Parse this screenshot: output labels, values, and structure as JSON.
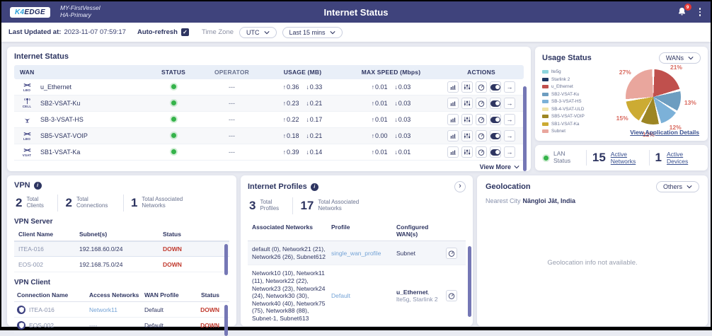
{
  "header": {
    "logo_k4": "K4",
    "logo_edge": "EDGE",
    "vessel_name": "MY-FirstVessel",
    "vessel_mode": "HA-Primary",
    "title": "Internet Status",
    "notification_count": "9"
  },
  "toolbar": {
    "last_updated_label": "Last Updated at:",
    "last_updated_value": "2023-11-07 07:59:17",
    "auto_refresh_label": "Auto-refresh",
    "checkbox_glyph": "✓",
    "time_zone_label": "Time Zone",
    "time_zone_value": "UTC",
    "range_value": "Last 15 mins"
  },
  "icons": {
    "up": "↑",
    "down": "↓",
    "right_arrow": "→",
    "chevron_right": "›",
    "info": "i"
  },
  "internet_status": {
    "title": "Internet Status",
    "columns": [
      "WAN",
      "STATUS",
      "OPERATOR",
      "USAGE (MB)",
      "MAX SPEED (Mbps)",
      "ACTIONS"
    ],
    "view_more": "View More",
    "rows": [
      {
        "name": "u_Ethernet",
        "badge": "LBO",
        "operator": "---",
        "usage_up": "0.36",
        "usage_down": "0.33",
        "speed_up": "0.01",
        "speed_down": "0.03"
      },
      {
        "name": "SB2-VSAT-Ku",
        "badge": "CELL",
        "operator": "---",
        "usage_up": "0.23",
        "usage_down": "0.21",
        "speed_up": "0.01",
        "speed_down": "0.03"
      },
      {
        "name": "SB-3-VSAT-HS",
        "badge": "",
        "operator": "---",
        "usage_up": "0.22",
        "usage_down": "0.17",
        "speed_up": "0.01",
        "speed_down": "0.03"
      },
      {
        "name": "SB5-VSAT-VOIP",
        "badge": "LBO",
        "operator": "---",
        "usage_up": "0.18",
        "usage_down": "0.21",
        "speed_up": "0.00",
        "speed_down": "0.03"
      },
      {
        "name": "SB1-VSAT-Ka",
        "badge": "VSAT",
        "operator": "---",
        "usage_up": "0.39",
        "usage_down": "0.14",
        "speed_up": "0.01",
        "speed_down": "0.01"
      }
    ]
  },
  "usage_status": {
    "title": "Usage Status",
    "filter_value": "WANs",
    "details_link": "View Application Details"
  },
  "chart_data": {
    "type": "pie",
    "title": "Usage Status",
    "legend_position": "left",
    "slices": [
      {
        "label": "u_Ethernet",
        "pct": 21,
        "color": "#c0504d"
      },
      {
        "label": "SB2-VSAT-Ku",
        "pct": 13,
        "color": "#6d9dc0"
      },
      {
        "label": "SB-3-VSAT-HS",
        "pct": 12,
        "color": "#7cb1d8"
      },
      {
        "label": "SB5-VSAT-VOIP",
        "pct": 12,
        "color": "#9d8624"
      },
      {
        "label": "SB1-VSAT-Ka",
        "pct": 15,
        "color": "#ccab33"
      },
      {
        "label": "Subnet",
        "pct": 27,
        "color": "#e9a69d"
      }
    ],
    "legend": [
      {
        "label": "lte5g",
        "color": "#8ed5dd"
      },
      {
        "label": "Starlink 2",
        "color": "#1f3864"
      },
      {
        "label": "u_Ethernet",
        "color": "#c0504d"
      },
      {
        "label": "SB2-VSAT-Ku",
        "color": "#6d9dc0"
      },
      {
        "label": "SB-3-VSAT-HS",
        "color": "#7cb1d8"
      },
      {
        "label": "SB-4-VSAT-ULD",
        "color": "#f0e3a6"
      },
      {
        "label": "SB5-VSAT-VOIP",
        "color": "#9d8624"
      },
      {
        "label": "SB1-VSAT-Ka",
        "color": "#ccab33"
      },
      {
        "label": "Subnet",
        "color": "#e9a69d"
      }
    ]
  },
  "lan": {
    "label_line1": "LAN",
    "label_line2": "Status",
    "networks_value": "15",
    "networks_label": "Active Networks",
    "devices_value": "1",
    "devices_label": "Active Devices"
  },
  "vpn": {
    "title": "VPN",
    "stats": [
      {
        "value": "2",
        "label": "Total Clients"
      },
      {
        "value": "2",
        "label": "Total Connections"
      },
      {
        "value": "1",
        "label": "Total Associated Networks"
      }
    ],
    "server": {
      "title": "VPN Server",
      "columns": [
        "Client Name",
        "Subnet(s)",
        "Status"
      ],
      "rows": [
        {
          "name": "ITEA-016",
          "subnet": "192.168.60.0/24",
          "status": "DOWN"
        },
        {
          "name": "EOS-002",
          "subnet": "192.168.75.0/24",
          "status": "DOWN"
        }
      ]
    },
    "client": {
      "title": "VPN Client",
      "columns": [
        "Connection Name",
        "Access Networks",
        "WAN Profile",
        "Status"
      ],
      "rows": [
        {
          "name": "ITEA-016",
          "access": "Network11",
          "wan_profile": "Default",
          "status": "DOWN"
        },
        {
          "name": "EOS-002",
          "access": "----",
          "wan_profile": "Default",
          "status": "DOWN"
        }
      ]
    }
  },
  "profiles": {
    "title": "Internet Profiles",
    "stats": [
      {
        "value": "3",
        "label": "Total Profiles"
      },
      {
        "value": "17",
        "label": "Total Associated Networks"
      }
    ],
    "columns": [
      "Associated Networks",
      "Profile",
      "Configured WAN(s)"
    ],
    "rows": [
      {
        "networks": "default (0), Network21 (21), Network26 (26), Subnet612",
        "profile": "single_wan_profile",
        "wans_main": "Subnet",
        "wans_extra": ""
      },
      {
        "networks": "Network10 (10), Network11 (11), Network22 (22), Network23 (23), Network24 (24), Network30 (30), Network40 (40), Network75 (75), Network88 (88), Subnet-1, Subnet613",
        "profile": "Default",
        "wans_main": "u_Ethernet",
        "wans_extra": ", lte5g, Starlink 2"
      }
    ]
  },
  "geolocation": {
    "title": "Geolocation",
    "filter_value": "Others",
    "nearest_label": "Nearest City",
    "nearest_value": "Nāngloi Jāt, India",
    "empty_message": "Geolocation info not available."
  }
}
